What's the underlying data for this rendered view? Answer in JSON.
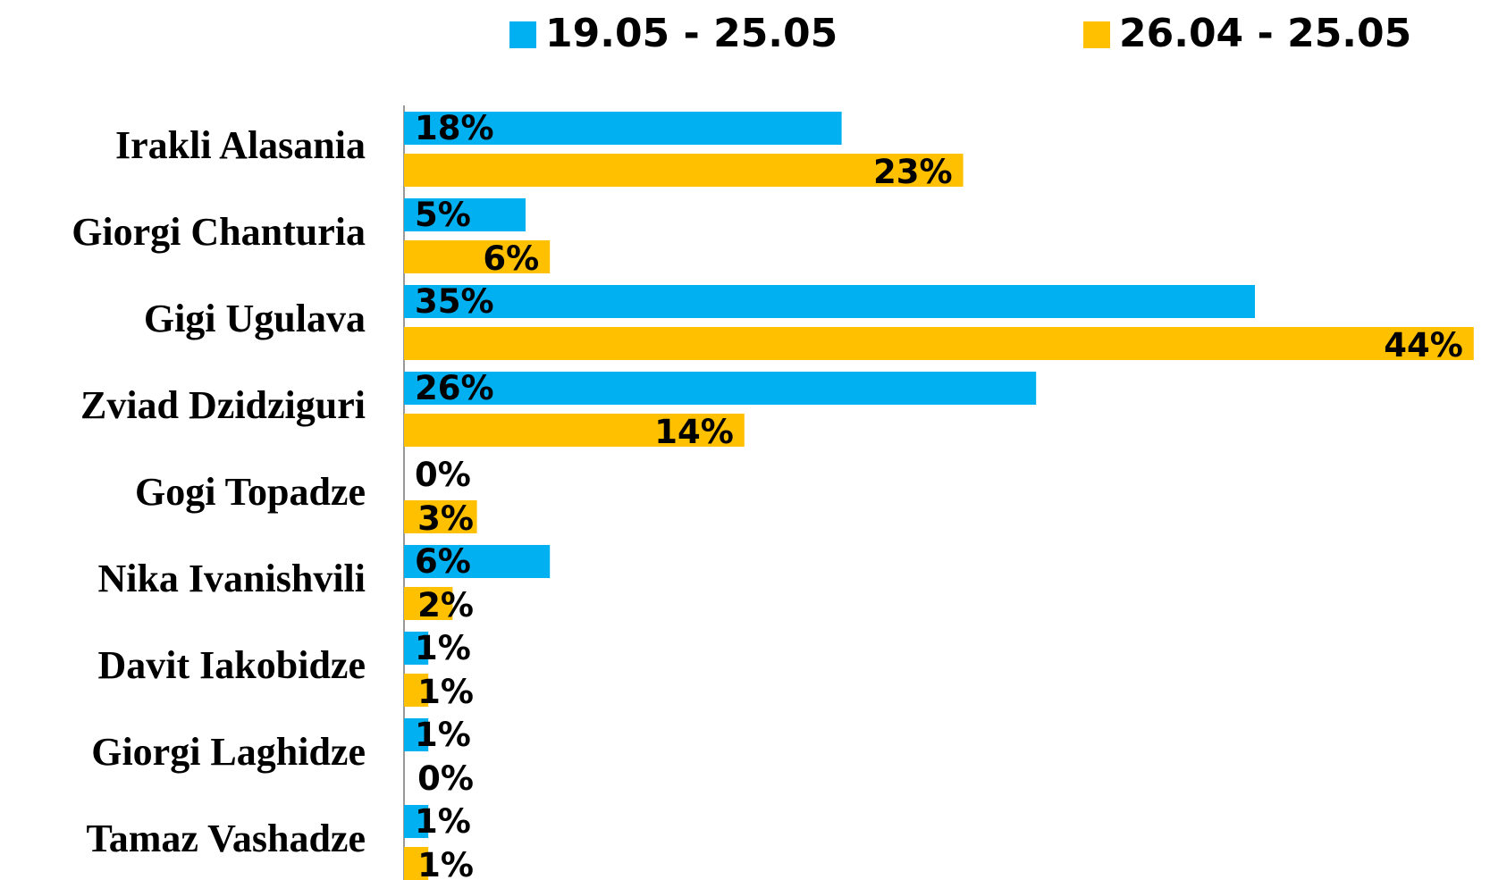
{
  "chart_data": {
    "type": "bar",
    "orientation": "horizontal",
    "categories": [
      "Irakli Alasania",
      "Giorgi Chanturia",
      "Gigi Ugulava",
      "Zviad Dzidziguri",
      "Gogi Topadze",
      "Nika Ivanishvili",
      "Davit Iakobidze",
      "Giorgi Laghidze",
      "Tamaz Vashadze"
    ],
    "series": [
      {
        "name": "19.05 - 25.05",
        "color": "#00b0f0",
        "values": [
          18,
          5,
          35,
          26,
          0,
          6,
          1,
          1,
          1
        ],
        "value_labels": [
          "18%",
          "5%",
          "35%",
          "26%",
          "0%",
          "6%",
          "1%",
          "1%",
          "1%"
        ]
      },
      {
        "name": "26.04 - 25.05",
        "color": "#ffc000",
        "values": [
          23,
          6,
          44,
          14,
          3,
          2,
          1,
          0,
          1
        ],
        "value_labels": [
          "23%",
          "6%",
          "44%",
          "14%",
          "3%",
          "2%",
          "1%",
          "0%",
          "1%"
        ]
      }
    ],
    "legend": "top"
  }
}
